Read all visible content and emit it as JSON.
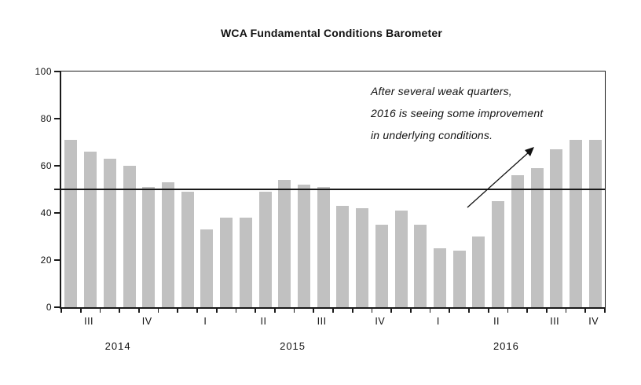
{
  "title": "WCA Fundamental Conditions Barometer",
  "annotation": {
    "lines": [
      "After several weak quarters,",
      "2016 is seeing some improvement",
      "in underlying conditions."
    ]
  },
  "colors": {
    "bar": "#c1c1c1",
    "axis": "#1a1a1a",
    "reference_line": "#1a1a1a",
    "text": "#111111"
  },
  "chart_data": {
    "type": "bar",
    "title": "WCA Fundamental Conditions Barometer",
    "values": [
      71,
      66,
      63,
      60,
      51,
      53,
      49,
      33,
      38,
      38,
      49,
      54,
      52,
      51,
      43,
      42,
      35,
      41,
      35,
      25,
      24,
      30,
      45,
      56,
      59,
      67,
      71,
      71
    ],
    "bars_per_quarter": 3,
    "x_quarter_labels": [
      {
        "label": "III",
        "bar": 1
      },
      {
        "label": "IV",
        "bar": 4
      },
      {
        "label": "I",
        "bar": 7
      },
      {
        "label": "II",
        "bar": 10
      },
      {
        "label": "III",
        "bar": 13
      },
      {
        "label": "IV",
        "bar": 16
      },
      {
        "label": "I",
        "bar": 19
      },
      {
        "label": "II",
        "bar": 22
      },
      {
        "label": "III",
        "bar": 25
      },
      {
        "label": "IV",
        "bar": 27
      }
    ],
    "x_year_labels": [
      {
        "label": "2014",
        "bar_center": 2.5
      },
      {
        "label": "2015",
        "bar_center": 11.5
      },
      {
        "label": "2016",
        "bar_center": 22.5
      }
    ],
    "y_ticks": [
      0,
      20,
      40,
      60,
      80,
      100
    ],
    "ylim": [
      0,
      100
    ],
    "reference_line": 50,
    "grid": "off",
    "legend": "none"
  }
}
